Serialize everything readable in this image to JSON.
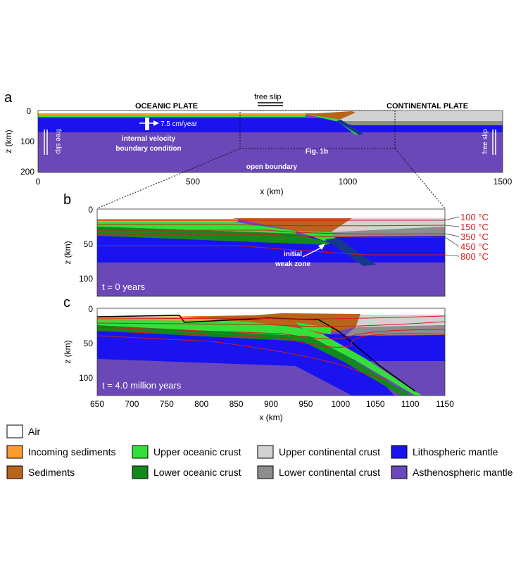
{
  "panel_a": {
    "letter": "a",
    "title_left": "OCEANIC PLATE",
    "title_right": "CONTINENTAL PLATE",
    "top_bc": "free slip",
    "left_bc": "free slip",
    "right_bc": "free slip",
    "velocity": "7.5 cm/year",
    "internal_bc_line1": "internal velocity",
    "internal_bc_line2": "boundary condition",
    "fig_ref": "Fig. 1b",
    "bottom_bc": "open boundary",
    "ylabel": "z (km)",
    "xlabel": "x (km)",
    "xticks": [
      "0",
      "500",
      "1000",
      "1500"
    ],
    "yticks": [
      "0",
      "100",
      "200"
    ]
  },
  "panel_b": {
    "letter": "b",
    "time": "t = 0 years",
    "ylabel": "z (km)",
    "yticks": [
      "0",
      "50",
      "100"
    ],
    "weak_zone_line1": "initial",
    "weak_zone_line2": "weak zone",
    "isotherms": [
      "100 °C",
      "150 °C",
      "350 °C",
      "450 °C",
      "800 °C"
    ]
  },
  "panel_c": {
    "letter": "c",
    "time": "t = 4.0 million years",
    "ylabel": "z (km)",
    "yticks": [
      "0",
      "50",
      "100"
    ],
    "xlabel": "x (km)",
    "xticks": [
      "650",
      "700",
      "750",
      "800",
      "850",
      "900",
      "950",
      "1000",
      "1050",
      "1100",
      "1150"
    ]
  },
  "legend": [
    {
      "label": "Air",
      "color": "#ffffff"
    },
    {
      "label": "Incoming sediments",
      "color": "#ff9a2e"
    },
    {
      "label": "Sediments",
      "color": "#b8651c"
    },
    {
      "label": "Upper oceanic crust",
      "color": "#33e03a"
    },
    {
      "label": "Lower oceanic crust",
      "color": "#14881d"
    },
    {
      "label": "Upper continental crust",
      "color": "#d2d2d2"
    },
    {
      "label": "Lower continental crust",
      "color": "#8d8d8d"
    },
    {
      "label": "Lithospheric mantle",
      "color": "#1a12ef"
    },
    {
      "label": "Asthenospheric mantle",
      "color": "#6a48b8"
    }
  ],
  "colors": {
    "isotherm": "#d41b1b",
    "isotherm_label": "#d41b1b",
    "weak_zone": "#17388f"
  }
}
